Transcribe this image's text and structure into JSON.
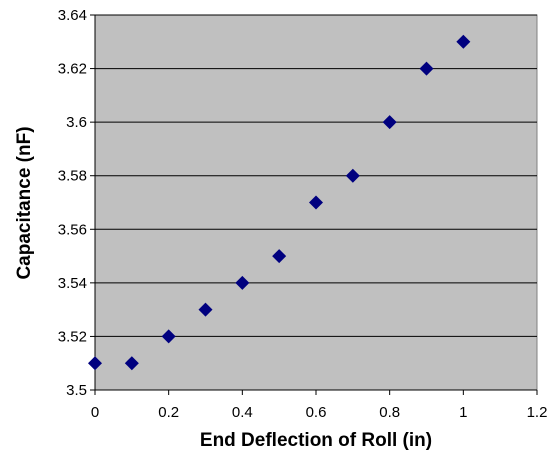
{
  "chart_data": {
    "type": "scatter",
    "title": "",
    "xlabel": "End Deflection of Roll (in)",
    "ylabel": "Capacitance (nF)",
    "xlim": [
      0,
      1.2
    ],
    "ylim": [
      3.5,
      3.64
    ],
    "x_ticks": [
      "0",
      "0.2",
      "0.4",
      "0.6",
      "0.8",
      "1",
      "1.2"
    ],
    "y_ticks": [
      "3.5",
      "3.52",
      "3.54",
      "3.56",
      "3.58",
      "3.6",
      "3.62",
      "3.64"
    ],
    "grid": "horizontal",
    "plot_background": "#c0c0c0",
    "marker": "diamond",
    "marker_color": "#00007f",
    "series": [
      {
        "x": [
          0,
          0.1,
          0.2,
          0.3,
          0.4,
          0.5,
          0.6,
          0.7,
          0.8,
          0.9,
          1.0
        ],
        "y": [
          3.51,
          3.51,
          3.52,
          3.53,
          3.54,
          3.55,
          3.57,
          3.58,
          3.6,
          3.62,
          3.63
        ]
      }
    ]
  }
}
